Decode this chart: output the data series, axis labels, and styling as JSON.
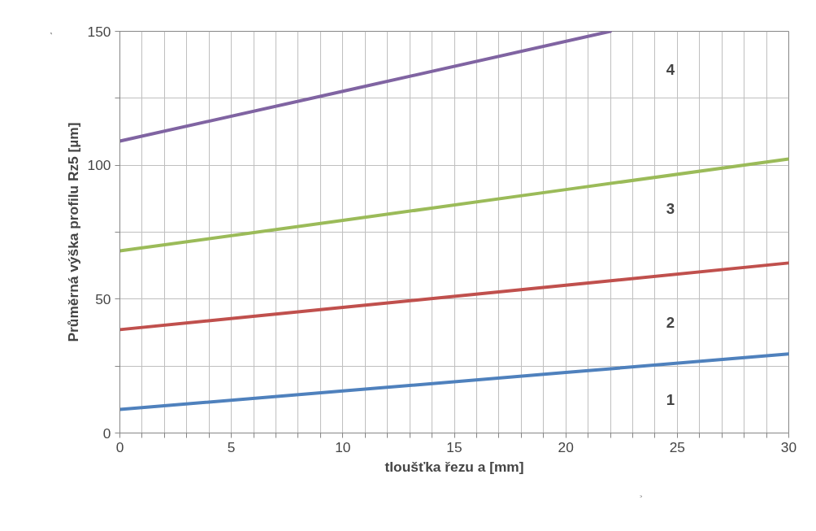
{
  "chart_data": {
    "type": "line",
    "xlabel": "tloušťka řezu a [mm]",
    "ylabel": "Průměrná výška profilu Rz5 [µm]",
    "xlim": [
      0,
      30
    ],
    "ylim": [
      0,
      150
    ],
    "xticks": [
      0,
      {
        "value": 1,
        "label": null
      },
      {
        "value": 2,
        "label": null
      },
      {
        "value": 3,
        "label": null
      },
      {
        "value": 4,
        "label": null
      },
      5,
      {
        "value": 6,
        "label": null
      },
      {
        "value": 7,
        "label": null
      },
      {
        "value": 8,
        "label": null
      },
      {
        "value": 9,
        "label": null
      },
      10,
      {
        "value": 11,
        "label": null
      },
      {
        "value": 12,
        "label": null
      },
      {
        "value": 13,
        "label": null
      },
      {
        "value": 14,
        "label": null
      },
      15,
      {
        "value": 16,
        "label": null
      },
      {
        "value": 17,
        "label": null
      },
      {
        "value": 18,
        "label": null
      },
      {
        "value": 19,
        "label": null
      },
      20,
      {
        "value": 21,
        "label": null
      },
      {
        "value": 22,
        "label": null
      },
      {
        "value": 23,
        "label": null
      },
      {
        "value": 24,
        "label": null
      },
      25,
      {
        "value": 26,
        "label": null
      },
      {
        "value": 27,
        "label": null
      },
      {
        "value": 28,
        "label": null
      },
      {
        "value": 29,
        "label": null
      },
      30
    ],
    "yticks": [
      0,
      {
        "value": 25,
        "label": null
      },
      50,
      {
        "value": 75,
        "label": null
      },
      100,
      {
        "value": 125,
        "label": null
      },
      150
    ],
    "grid": true,
    "line_style": "solid",
    "marker": "none",
    "series": [
      {
        "color": "#4f81bd",
        "x": [
          0,
          10,
          20,
          30
        ],
        "values": [
          8.8,
          15.7,
          22.6,
          29.5
        ]
      },
      {
        "color": "#c0504d",
        "x": [
          0,
          10,
          20,
          30
        ],
        "values": [
          38.6,
          46.9,
          55.2,
          63.5
        ]
      },
      {
        "color": "#9bbb59",
        "x": [
          0,
          10,
          20,
          30
        ],
        "values": [
          68,
          79.4,
          90.9,
          102.3
        ]
      },
      {
        "color": "#8064a2",
        "x": [
          0,
          10,
          22
        ],
        "values": [
          109,
          127.6,
          150
        ]
      }
    ],
    "annotations": [
      "1",
      "2",
      "3",
      "4"
    ]
  }
}
